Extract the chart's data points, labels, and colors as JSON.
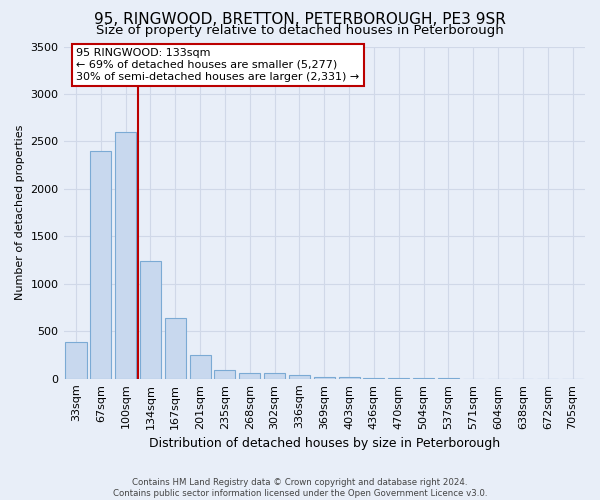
{
  "title": "95, RINGWOOD, BRETTON, PETERBOROUGH, PE3 9SR",
  "subtitle": "Size of property relative to detached houses in Peterborough",
  "xlabel": "Distribution of detached houses by size in Peterborough",
  "ylabel": "Number of detached properties",
  "footer_line1": "Contains HM Land Registry data © Crown copyright and database right 2024.",
  "footer_line2": "Contains public sector information licensed under the Open Government Licence v3.0.",
  "categories": [
    "33sqm",
    "67sqm",
    "100sqm",
    "134sqm",
    "167sqm",
    "201sqm",
    "235sqm",
    "268sqm",
    "302sqm",
    "336sqm",
    "369sqm",
    "403sqm",
    "436sqm",
    "470sqm",
    "504sqm",
    "537sqm",
    "571sqm",
    "604sqm",
    "638sqm",
    "672sqm",
    "705sqm"
  ],
  "values": [
    390,
    2400,
    2600,
    1240,
    640,
    255,
    95,
    60,
    60,
    45,
    20,
    15,
    10,
    8,
    5,
    4,
    3,
    2,
    2,
    1,
    1
  ],
  "bar_color": "#c8d8ee",
  "bar_edge_color": "#7baad4",
  "annotation_line1": "95 RINGWOOD: 133sqm",
  "annotation_line2": "← 69% of detached houses are smaller (5,277)",
  "annotation_line3": "30% of semi-detached houses are larger (2,331) →",
  "vline_color": "#bb0000",
  "annotation_box_facecolor": "#ffffff",
  "annotation_box_edgecolor": "#bb0000",
  "ylim_max": 3500,
  "bg_color": "#e8eef8",
  "grid_color": "#d0d8e8",
  "title_fontsize": 11,
  "subtitle_fontsize": 9.5,
  "ylabel_fontsize": 8,
  "xlabel_fontsize": 9
}
